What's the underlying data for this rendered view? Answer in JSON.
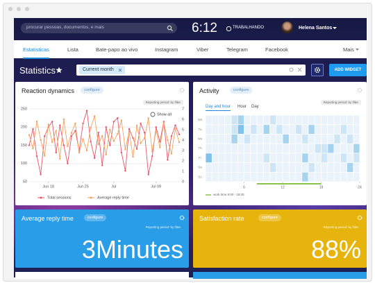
{
  "header": {
    "search_placeholder": "procurar pessoas, documentos, e mais",
    "time": "6:12",
    "status": "TRABALHANDO",
    "user": "Helena Santos"
  },
  "nav": {
    "tabs": [
      "Estatisticas",
      "Lista",
      "Bate-papo ao vivo",
      "Instagram",
      "Viber",
      "Telegram",
      "Facebook"
    ],
    "active": 0,
    "more": "Mais"
  },
  "toolbar": {
    "title": "Statistics",
    "filter": "Current month",
    "button": "ADD WIDGET"
  },
  "widgets": [
    {
      "title": "Reaction dynamics",
      "configure": "configure",
      "period": "Reporting period: by filter",
      "show_all": "Show all",
      "chart": {
        "type": "line",
        "x": [
          0,
          1,
          2,
          3,
          4,
          5,
          6,
          7,
          8,
          9,
          10,
          11,
          12,
          13,
          14,
          15,
          16,
          17,
          18,
          19,
          20,
          21,
          22,
          23,
          24,
          25,
          26,
          27,
          28,
          29,
          30,
          31,
          32,
          33,
          34,
          35,
          36,
          37,
          38,
          39
        ],
        "xlim": [
          0,
          39
        ],
        "xticks": [
          {
            "value": 5,
            "label": "Jun 18"
          },
          {
            "value": 14,
            "label": "Jun 25"
          },
          {
            "value": 22,
            "label": "Jul"
          },
          {
            "value": 33,
            "label": "Jul 09"
          }
        ],
        "ylim": [
          50,
          250
        ],
        "yticks": [
          50,
          100,
          150,
          200,
          250
        ],
        "y2lim": [
          0,
          7
        ],
        "y2ticks": [
          0,
          1,
          2,
          3,
          4,
          5,
          6,
          7
        ],
        "grid": true,
        "series": [
          {
            "name": "Total sessions",
            "color": "#e8556a",
            "values": [
              150,
              195,
              120,
              70,
              175,
              200,
              215,
              130,
              205,
              150,
              100,
              175,
              190,
              135,
              210,
              245,
              160,
              115,
              185,
              95,
              200,
              150,
              215,
              225,
              130,
              80,
              195,
              170,
              140,
              210,
              185,
              70,
              120,
              200,
              160,
              215,
              110,
              175,
              205,
              180
            ]
          },
          {
            "name": "Average reply time",
            "color": "#f4a259",
            "axis": "y2",
            "values": [
              4.5,
              3.2,
              5.8,
              4.0,
              2.5,
              5.5,
              3.8,
              4.9,
              2.2,
              6.0,
              3.4,
              4.7,
              5.6,
              2.8,
              4.1,
              3.0,
              5.2,
              6.3,
              3.6,
              4.4,
              2.6,
              5.0,
              3.9,
              4.6,
              5.9,
              3.1,
              4.8,
              2.4,
              5.4,
              3.7,
              4.2,
              6.1,
              2.9,
              4.9,
              3.3,
              5.7,
              4.0,
              2.7,
              5.1,
              3.8
            ]
          }
        ]
      }
    },
    {
      "title": "Activity",
      "configure": "configure",
      "period": "Reporting period: by filter",
      "tabs": [
        "Day and hour",
        "Hour",
        "Day"
      ],
      "active_tab": 0,
      "heatmap": {
        "rows": [
          "Mo",
          "Tu",
          "We",
          "Th",
          "Fr",
          "Sa",
          "Su"
        ],
        "xticks": [
          6,
          12,
          18,
          24
        ],
        "colors": [
          "#eaf3fa",
          "#cde5f4",
          "#a6d4ee",
          "#7fc3ea"
        ],
        "values": [
          [
            0,
            0,
            0,
            0,
            1,
            2,
            0,
            0,
            0,
            0,
            1,
            0,
            0,
            0,
            0,
            0,
            0,
            0,
            0,
            0,
            0,
            0,
            0,
            0
          ],
          [
            0,
            0,
            0,
            0,
            1,
            3,
            0,
            1,
            0,
            2,
            0,
            1,
            0,
            0,
            1,
            0,
            2,
            0,
            0,
            0,
            0,
            1,
            0,
            0
          ],
          [
            0,
            0,
            0,
            0,
            2,
            0,
            1,
            0,
            0,
            0,
            0,
            0,
            2,
            0,
            0,
            1,
            0,
            0,
            0,
            0,
            1,
            0,
            1,
            0
          ],
          [
            0,
            0,
            0,
            0,
            0,
            0,
            0,
            0,
            0,
            0,
            0,
            0,
            0,
            0,
            0,
            0,
            0,
            1,
            1,
            2,
            0,
            0,
            0,
            2
          ],
          [
            3,
            0,
            0,
            0,
            0,
            0,
            0,
            0,
            0,
            1,
            0,
            0,
            0,
            0,
            0,
            2,
            0,
            0,
            1,
            0,
            0,
            1,
            0,
            1
          ],
          [
            0,
            0,
            0,
            0,
            0,
            0,
            0,
            0,
            0,
            0,
            1,
            0,
            0,
            0,
            0,
            0,
            1,
            0,
            0,
            0,
            0,
            0,
            2,
            0
          ],
          [
            0,
            0,
            0,
            0,
            0,
            0,
            0,
            0,
            0,
            0,
            0,
            0,
            0,
            0,
            0,
            2,
            0,
            0,
            0,
            0,
            0,
            0,
            0,
            0
          ]
        ],
        "work_hours": [
          8,
          18
        ],
        "work_color": "#8bc34a",
        "work_label": "work time 8:00 - 18:00"
      }
    },
    {
      "title": "Average reply time",
      "configure": "configure",
      "period": "Reporting period: by filter",
      "value": "3Minutes",
      "color": "#2a9de8"
    },
    {
      "title": "Satisfaction rate",
      "configure": "configure",
      "period": "Reporting period: by filter",
      "value": "88%",
      "color": "#e6b40c"
    }
  ]
}
